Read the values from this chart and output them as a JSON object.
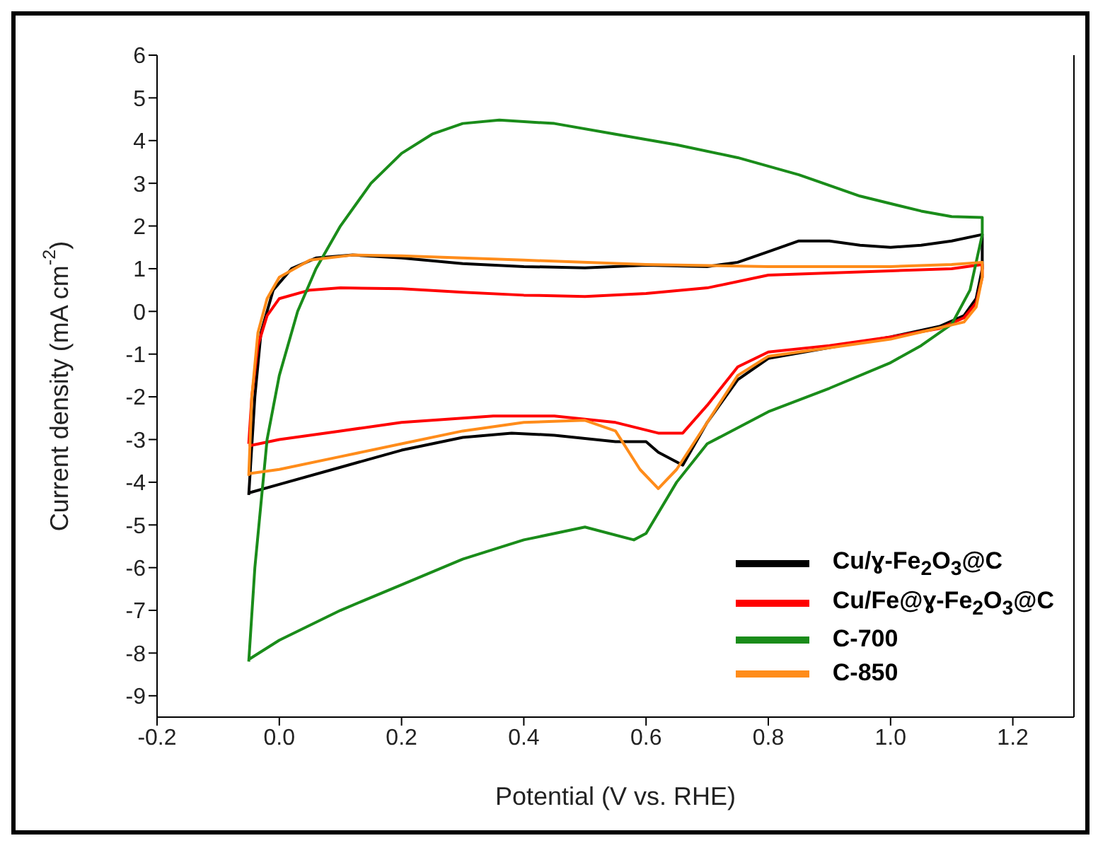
{
  "chart_data": {
    "type": "line",
    "xlabel": "Potential (V vs. RHE)",
    "ylabel": "Current density (mA cm$^{-2}$)",
    "xlim": [
      -0.2,
      1.3
    ],
    "ylim": [
      -9.5,
      6
    ],
    "xticks": [
      {
        "value": -0.2,
        "label": "-0.2"
      },
      {
        "value": 0,
        "label": "0.0"
      },
      {
        "value": 0.2,
        "label": "0.2"
      },
      {
        "value": 0.4,
        "label": "0.4"
      },
      {
        "value": 0.6,
        "label": "0.6"
      },
      {
        "value": 0.8,
        "label": "0.8"
      },
      {
        "value": 1,
        "label": "1.0"
      },
      {
        "value": 1.2,
        "label": "1.2"
      }
    ],
    "yticks": [
      -9,
      -8,
      -7,
      -6,
      -5,
      -4,
      -3,
      -2,
      -1,
      0,
      1,
      2,
      3,
      4,
      5,
      6
    ],
    "grid": false,
    "legend": "bottom right",
    "marker": "none",
    "line_style": "solid",
    "series": [
      {
        "name": "Cu/ɣ-Fe$_{2}$O$_{3}$@C",
        "color": "#000000",
        "x": [
          -0.05,
          -0.04,
          -0.03,
          -0.01,
          0.02,
          0.06,
          0.12,
          0.2,
          0.3,
          0.4,
          0.5,
          0.6,
          0.7,
          0.75,
          0.8,
          0.85,
          0.9,
          0.95,
          1.0,
          1.05,
          1.1,
          1.15,
          1.15,
          1.14,
          1.12,
          1.08,
          1.0,
          0.9,
          0.8,
          0.75,
          0.7,
          0.66,
          0.62,
          0.6,
          0.55,
          0.45,
          0.38,
          0.3,
          0.2,
          0.1,
          0.0,
          -0.05
        ],
        "values": [
          -4.3,
          -2,
          -0.5,
          0.5,
          1.0,
          1.25,
          1.32,
          1.25,
          1.12,
          1.05,
          1.02,
          1.08,
          1.05,
          1.15,
          1.4,
          1.65,
          1.65,
          1.55,
          1.5,
          1.55,
          1.65,
          1.8,
          1.0,
          0.3,
          -0.1,
          -0.35,
          -0.6,
          -0.85,
          -1.1,
          -1.6,
          -2.6,
          -3.6,
          -3.3,
          -3.05,
          -3.05,
          -2.9,
          -2.85,
          -2.95,
          -3.25,
          -3.65,
          -4.05,
          -4.25
        ]
      },
      {
        "name": "Cu/Fe@ɣ-Fe$_{2}$O$_{3}$@C",
        "color": "#ff0000",
        "x": [
          -0.05,
          -0.045,
          -0.035,
          -0.02,
          0.0,
          0.05,
          0.1,
          0.2,
          0.3,
          0.4,
          0.5,
          0.6,
          0.7,
          0.8,
          0.9,
          1.0,
          1.1,
          1.15,
          1.15,
          1.14,
          1.12,
          1.08,
          1.0,
          0.9,
          0.8,
          0.75,
          0.7,
          0.66,
          0.62,
          0.55,
          0.45,
          0.35,
          0.2,
          0.1,
          0.0,
          -0.05
        ],
        "values": [
          -3.1,
          -2,
          -0.8,
          -0.1,
          0.3,
          0.5,
          0.55,
          0.53,
          0.45,
          0.38,
          0.35,
          0.42,
          0.55,
          0.85,
          0.9,
          0.95,
          1.0,
          1.1,
          0.8,
          0.2,
          -0.15,
          -0.4,
          -0.6,
          -0.8,
          -0.95,
          -1.3,
          -2.2,
          -2.85,
          -2.85,
          -2.6,
          -2.45,
          -2.45,
          -2.6,
          -2.8,
          -3.0,
          -3.15
        ]
      },
      {
        "name": "C-700",
        "color": "#1a8c1a",
        "x": [
          -0.05,
          -0.04,
          -0.02,
          0.0,
          0.03,
          0.06,
          0.1,
          0.15,
          0.2,
          0.25,
          0.3,
          0.36,
          0.45,
          0.55,
          0.65,
          0.75,
          0.85,
          0.95,
          1.05,
          1.1,
          1.15,
          1.15,
          1.13,
          1.1,
          1.05,
          1.0,
          0.9,
          0.8,
          0.7,
          0.65,
          0.6,
          0.58,
          0.5,
          0.4,
          0.3,
          0.2,
          0.1,
          0.0,
          -0.05
        ],
        "values": [
          -8.2,
          -6,
          -3,
          -1.5,
          0,
          1,
          2,
          3,
          3.7,
          4.15,
          4.4,
          4.48,
          4.4,
          4.15,
          3.9,
          3.6,
          3.2,
          2.7,
          2.35,
          2.22,
          2.2,
          1.8,
          0.5,
          -0.3,
          -0.8,
          -1.2,
          -1.8,
          -2.35,
          -3.1,
          -4,
          -5.2,
          -5.35,
          -5.05,
          -5.35,
          -5.8,
          -6.4,
          -7.0,
          -7.7,
          -8.15
        ]
      },
      {
        "name": "C-850",
        "color": "#ff8c1a",
        "x": [
          -0.05,
          -0.045,
          -0.035,
          -0.02,
          0.0,
          0.05,
          0.12,
          0.2,
          0.4,
          0.6,
          0.8,
          1.0,
          1.1,
          1.15,
          1.15,
          1.14,
          1.12,
          1.06,
          1.0,
          0.9,
          0.8,
          0.75,
          0.7,
          0.65,
          0.62,
          0.59,
          0.55,
          0.5,
          0.4,
          0.3,
          0.2,
          0.1,
          0.0,
          -0.05
        ],
        "values": [
          -3.85,
          -2,
          -0.5,
          0.3,
          0.8,
          1.2,
          1.32,
          1.3,
          1.2,
          1.1,
          1.05,
          1.05,
          1.1,
          1.15,
          0.8,
          0.1,
          -0.25,
          -0.45,
          -0.65,
          -0.85,
          -1.05,
          -1.5,
          -2.6,
          -3.7,
          -4.15,
          -3.7,
          -2.8,
          -2.55,
          -2.6,
          -2.8,
          -3.1,
          -3.4,
          -3.7,
          -3.8
        ]
      }
    ]
  }
}
